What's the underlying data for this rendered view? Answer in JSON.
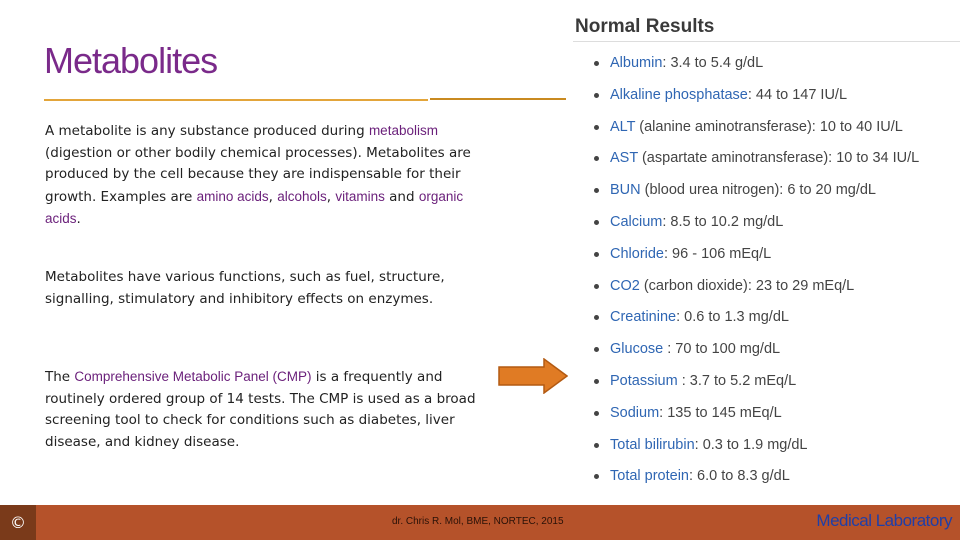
{
  "slide": {
    "title": "Metabolites",
    "paragraph1": {
      "t1": "A metabolite is any substance produced during ",
      "l1": "metabolism",
      "t2": " (digestion or other bodily chemical processes). Metabolites are produced by the cell because they are indispensable for their growth. Examples are ",
      "l2": "amino acids",
      "t3": ", ",
      "l3": "alcohols",
      "t4": ", ",
      "l4": "vitamins",
      "t5": " and ",
      "l5": "organic acids",
      "t6": "."
    },
    "paragraph2": "Metabolites have various functions, such as fuel, structure, signalling, stimulatory and inhibitory effects on enzymes.",
    "paragraph3": {
      "t1": "The ",
      "l1": "Comprehensive Metabolic Panel (CMP)",
      "t2": " is a frequently and routinely ordered group of 14 tests. The CMP is used as a broad screening tool to check for conditions such as diabetes, liver disease, and kidney disease."
    }
  },
  "results": {
    "title": "Normal Results",
    "items": [
      {
        "name": "Albumin",
        "value": ": 3.4 to 5.4 g/dL"
      },
      {
        "name": "Alkaline phosphatase",
        "value": ": 44 to 147 IU/L"
      },
      {
        "name": "ALT",
        "value": " (alanine aminotransferase): 10 to 40 IU/L"
      },
      {
        "name": "AST",
        "value": " (aspartate aminotransferase): 10 to 34 IU/L"
      },
      {
        "name": "BUN",
        "value": " (blood urea nitrogen): 6 to 20 mg/dL"
      },
      {
        "name": "Calcium",
        "value": ": 8.5 to 10.2 mg/dL"
      },
      {
        "name": "Chloride",
        "value": ": 96 - 106 mEq/L"
      },
      {
        "name": "CO2",
        "value": " (carbon dioxide): 23 to 29 mEq/L"
      },
      {
        "name": "Creatinine",
        "value": ": 0.6 to 1.3 mg/dL"
      },
      {
        "name": "Glucose",
        "value": " : 70 to 100 mg/dL"
      },
      {
        "name": "Potassium",
        "value": " : 3.7 to 5.2 mEq/L"
      },
      {
        "name": "Sodium",
        "value": ": 135 to 145 mEq/L"
      },
      {
        "name": "Total bilirubin",
        "value": ": 0.3 to 1.9 mg/dL"
      },
      {
        "name": "Total protein",
        "value": ": 6.0 to 8.3 g/dL"
      }
    ]
  },
  "footer": {
    "copyright": "©",
    "author": "dr. Chris R. Mol, BME, NORTEC, 2015",
    "brand": "Medical Laboratory"
  },
  "colors": {
    "title": "#7a2a8a",
    "link": "#6a1f7a",
    "rule": "#e3a53a",
    "arrow": "#e07b24",
    "result_name": "#2f66b3",
    "footer": "#b5522a",
    "brand": "#1f3fa8"
  },
  "icons": {
    "arrow": "right-arrow-icon"
  }
}
